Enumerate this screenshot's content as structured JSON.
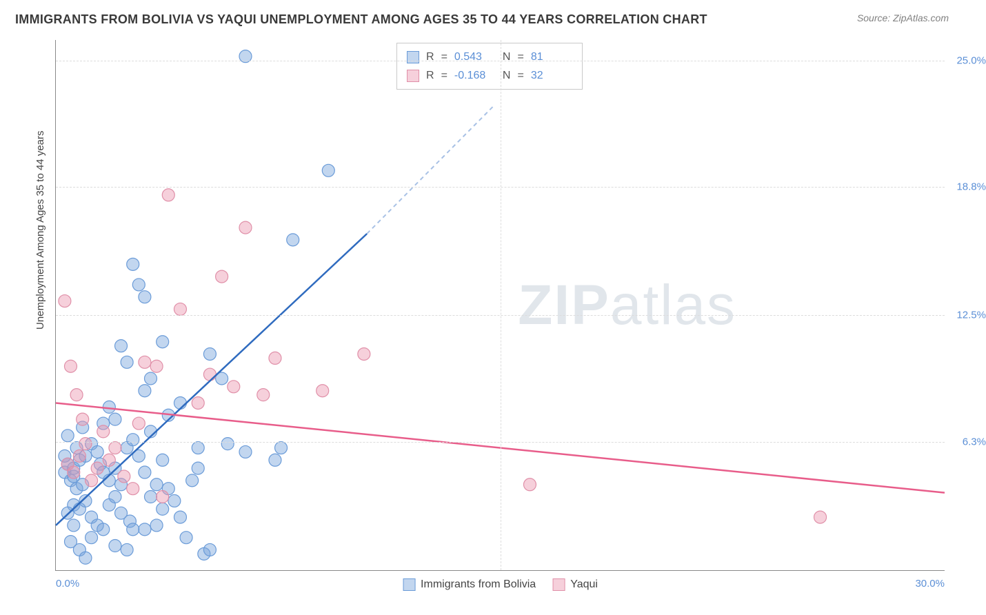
{
  "title": "IMMIGRANTS FROM BOLIVIA VS YAQUI UNEMPLOYMENT AMONG AGES 35 TO 44 YEARS CORRELATION CHART",
  "source_label": "Source:",
  "source_name": "ZipAtlas.com",
  "y_axis_title": "Unemployment Among Ages 35 to 44 years",
  "watermark_bold": "ZIP",
  "watermark_rest": "atlas",
  "chart": {
    "type": "scatter",
    "xlim": [
      0,
      30
    ],
    "ylim": [
      0,
      26
    ],
    "x_ticks": [
      {
        "v": 0,
        "label": "0.0%"
      },
      {
        "v": 30,
        "label": "30.0%"
      }
    ],
    "y_ticks": [
      {
        "v": 6.3,
        "label": "6.3%"
      },
      {
        "v": 12.5,
        "label": "12.5%"
      },
      {
        "v": 18.8,
        "label": "18.8%"
      },
      {
        "v": 25.0,
        "label": "25.0%"
      }
    ],
    "v_grid_at": [
      15
    ],
    "series": [
      {
        "name": "Immigrants from Bolivia",
        "key": "bolivia",
        "fill": "rgba(120,165,220,0.45)",
        "stroke": "#6a9bd8",
        "line_color": "#2f6bbf",
        "line_dash_color": "#a8c1e5",
        "R": "0.543",
        "N": "81",
        "trend": {
          "x1": 0,
          "y1": 2.2,
          "x2": 10.5,
          "y2": 16.5,
          "dash_x2": 14.8,
          "dash_y2": 22.8
        },
        "points": [
          [
            0.3,
            4.8
          ],
          [
            0.4,
            5.2
          ],
          [
            0.5,
            4.4
          ],
          [
            0.6,
            5.0
          ],
          [
            0.7,
            4.0
          ],
          [
            0.8,
            5.4
          ],
          [
            0.9,
            4.2
          ],
          [
            1.0,
            5.6
          ],
          [
            0.6,
            3.2
          ],
          [
            0.8,
            3.0
          ],
          [
            1.0,
            3.4
          ],
          [
            1.2,
            2.6
          ],
          [
            1.4,
            2.2
          ],
          [
            1.6,
            2.0
          ],
          [
            0.5,
            1.4
          ],
          [
            0.8,
            1.0
          ],
          [
            1.2,
            1.6
          ],
          [
            1.5,
            5.2
          ],
          [
            1.6,
            4.8
          ],
          [
            1.8,
            4.4
          ],
          [
            2.0,
            5.0
          ],
          [
            2.2,
            4.2
          ],
          [
            1.8,
            3.2
          ],
          [
            2.0,
            3.6
          ],
          [
            2.2,
            2.8
          ],
          [
            2.5,
            2.4
          ],
          [
            2.6,
            2.0
          ],
          [
            2.4,
            6.0
          ],
          [
            2.6,
            6.4
          ],
          [
            2.8,
            5.6
          ],
          [
            3.0,
            4.8
          ],
          [
            3.2,
            3.6
          ],
          [
            3.4,
            4.2
          ],
          [
            3.6,
            3.0
          ],
          [
            3.0,
            2.0
          ],
          [
            3.4,
            2.2
          ],
          [
            3.6,
            5.4
          ],
          [
            3.8,
            4.0
          ],
          [
            4.0,
            3.4
          ],
          [
            4.2,
            2.6
          ],
          [
            4.4,
            1.6
          ],
          [
            4.6,
            4.4
          ],
          [
            4.8,
            5.0
          ],
          [
            5.0,
            0.8
          ],
          [
            5.2,
            1.0
          ],
          [
            2.0,
            1.2
          ],
          [
            2.4,
            1.0
          ],
          [
            1.0,
            0.6
          ],
          [
            0.6,
            2.2
          ],
          [
            0.4,
            2.8
          ],
          [
            0.7,
            6.0
          ],
          [
            0.3,
            5.6
          ],
          [
            1.2,
            6.2
          ],
          [
            1.4,
            5.8
          ],
          [
            4.8,
            6.0
          ],
          [
            5.2,
            10.6
          ],
          [
            5.6,
            9.4
          ],
          [
            5.8,
            6.2
          ],
          [
            6.4,
            5.8
          ],
          [
            7.4,
            5.4
          ],
          [
            7.6,
            6.0
          ],
          [
            3.0,
            8.8
          ],
          [
            3.2,
            9.4
          ],
          [
            3.6,
            11.2
          ],
          [
            2.8,
            14.0
          ],
          [
            2.6,
            15.0
          ],
          [
            3.0,
            13.4
          ],
          [
            2.2,
            11.0
          ],
          [
            2.4,
            10.2
          ],
          [
            8.0,
            16.2
          ],
          [
            9.2,
            19.6
          ],
          [
            6.4,
            25.2
          ],
          [
            3.2,
            6.8
          ],
          [
            1.6,
            7.2
          ],
          [
            1.8,
            8.0
          ],
          [
            2.0,
            7.4
          ],
          [
            0.9,
            7.0
          ],
          [
            0.4,
            6.6
          ],
          [
            3.8,
            7.6
          ],
          [
            4.2,
            8.2
          ],
          [
            0.6,
            4.6
          ]
        ]
      },
      {
        "name": "Yaqui",
        "key": "yaqui",
        "fill": "rgba(235,150,175,0.45)",
        "stroke": "#e08fa8",
        "line_color": "#e85d8a",
        "R": "-0.168",
        "N": "32",
        "trend": {
          "x1": 0,
          "y1": 8.2,
          "x2": 30,
          "y2": 3.8
        },
        "points": [
          [
            0.4,
            5.2
          ],
          [
            0.6,
            4.8
          ],
          [
            0.8,
            5.6
          ],
          [
            1.0,
            6.2
          ],
          [
            1.2,
            4.4
          ],
          [
            1.4,
            5.0
          ],
          [
            0.5,
            10.0
          ],
          [
            0.7,
            8.6
          ],
          [
            0.3,
            13.2
          ],
          [
            0.9,
            7.4
          ],
          [
            1.6,
            6.8
          ],
          [
            1.8,
            5.4
          ],
          [
            2.0,
            6.0
          ],
          [
            2.3,
            4.6
          ],
          [
            2.6,
            4.0
          ],
          [
            2.8,
            7.2
          ],
          [
            3.0,
            10.2
          ],
          [
            3.4,
            10.0
          ],
          [
            3.8,
            18.4
          ],
          [
            4.2,
            12.8
          ],
          [
            4.8,
            8.2
          ],
          [
            5.2,
            9.6
          ],
          [
            5.6,
            14.4
          ],
          [
            6.0,
            9.0
          ],
          [
            6.4,
            16.8
          ],
          [
            7.0,
            8.6
          ],
          [
            7.4,
            10.4
          ],
          [
            9.0,
            8.8
          ],
          [
            10.4,
            10.6
          ],
          [
            16.0,
            4.2
          ],
          [
            25.8,
            2.6
          ],
          [
            3.6,
            3.6
          ]
        ]
      }
    ]
  },
  "legend": {
    "series1": "Immigrants from Bolivia",
    "series2": "Yaqui"
  },
  "stats_labels": {
    "R": "R",
    "eq": "=",
    "N": "N"
  }
}
